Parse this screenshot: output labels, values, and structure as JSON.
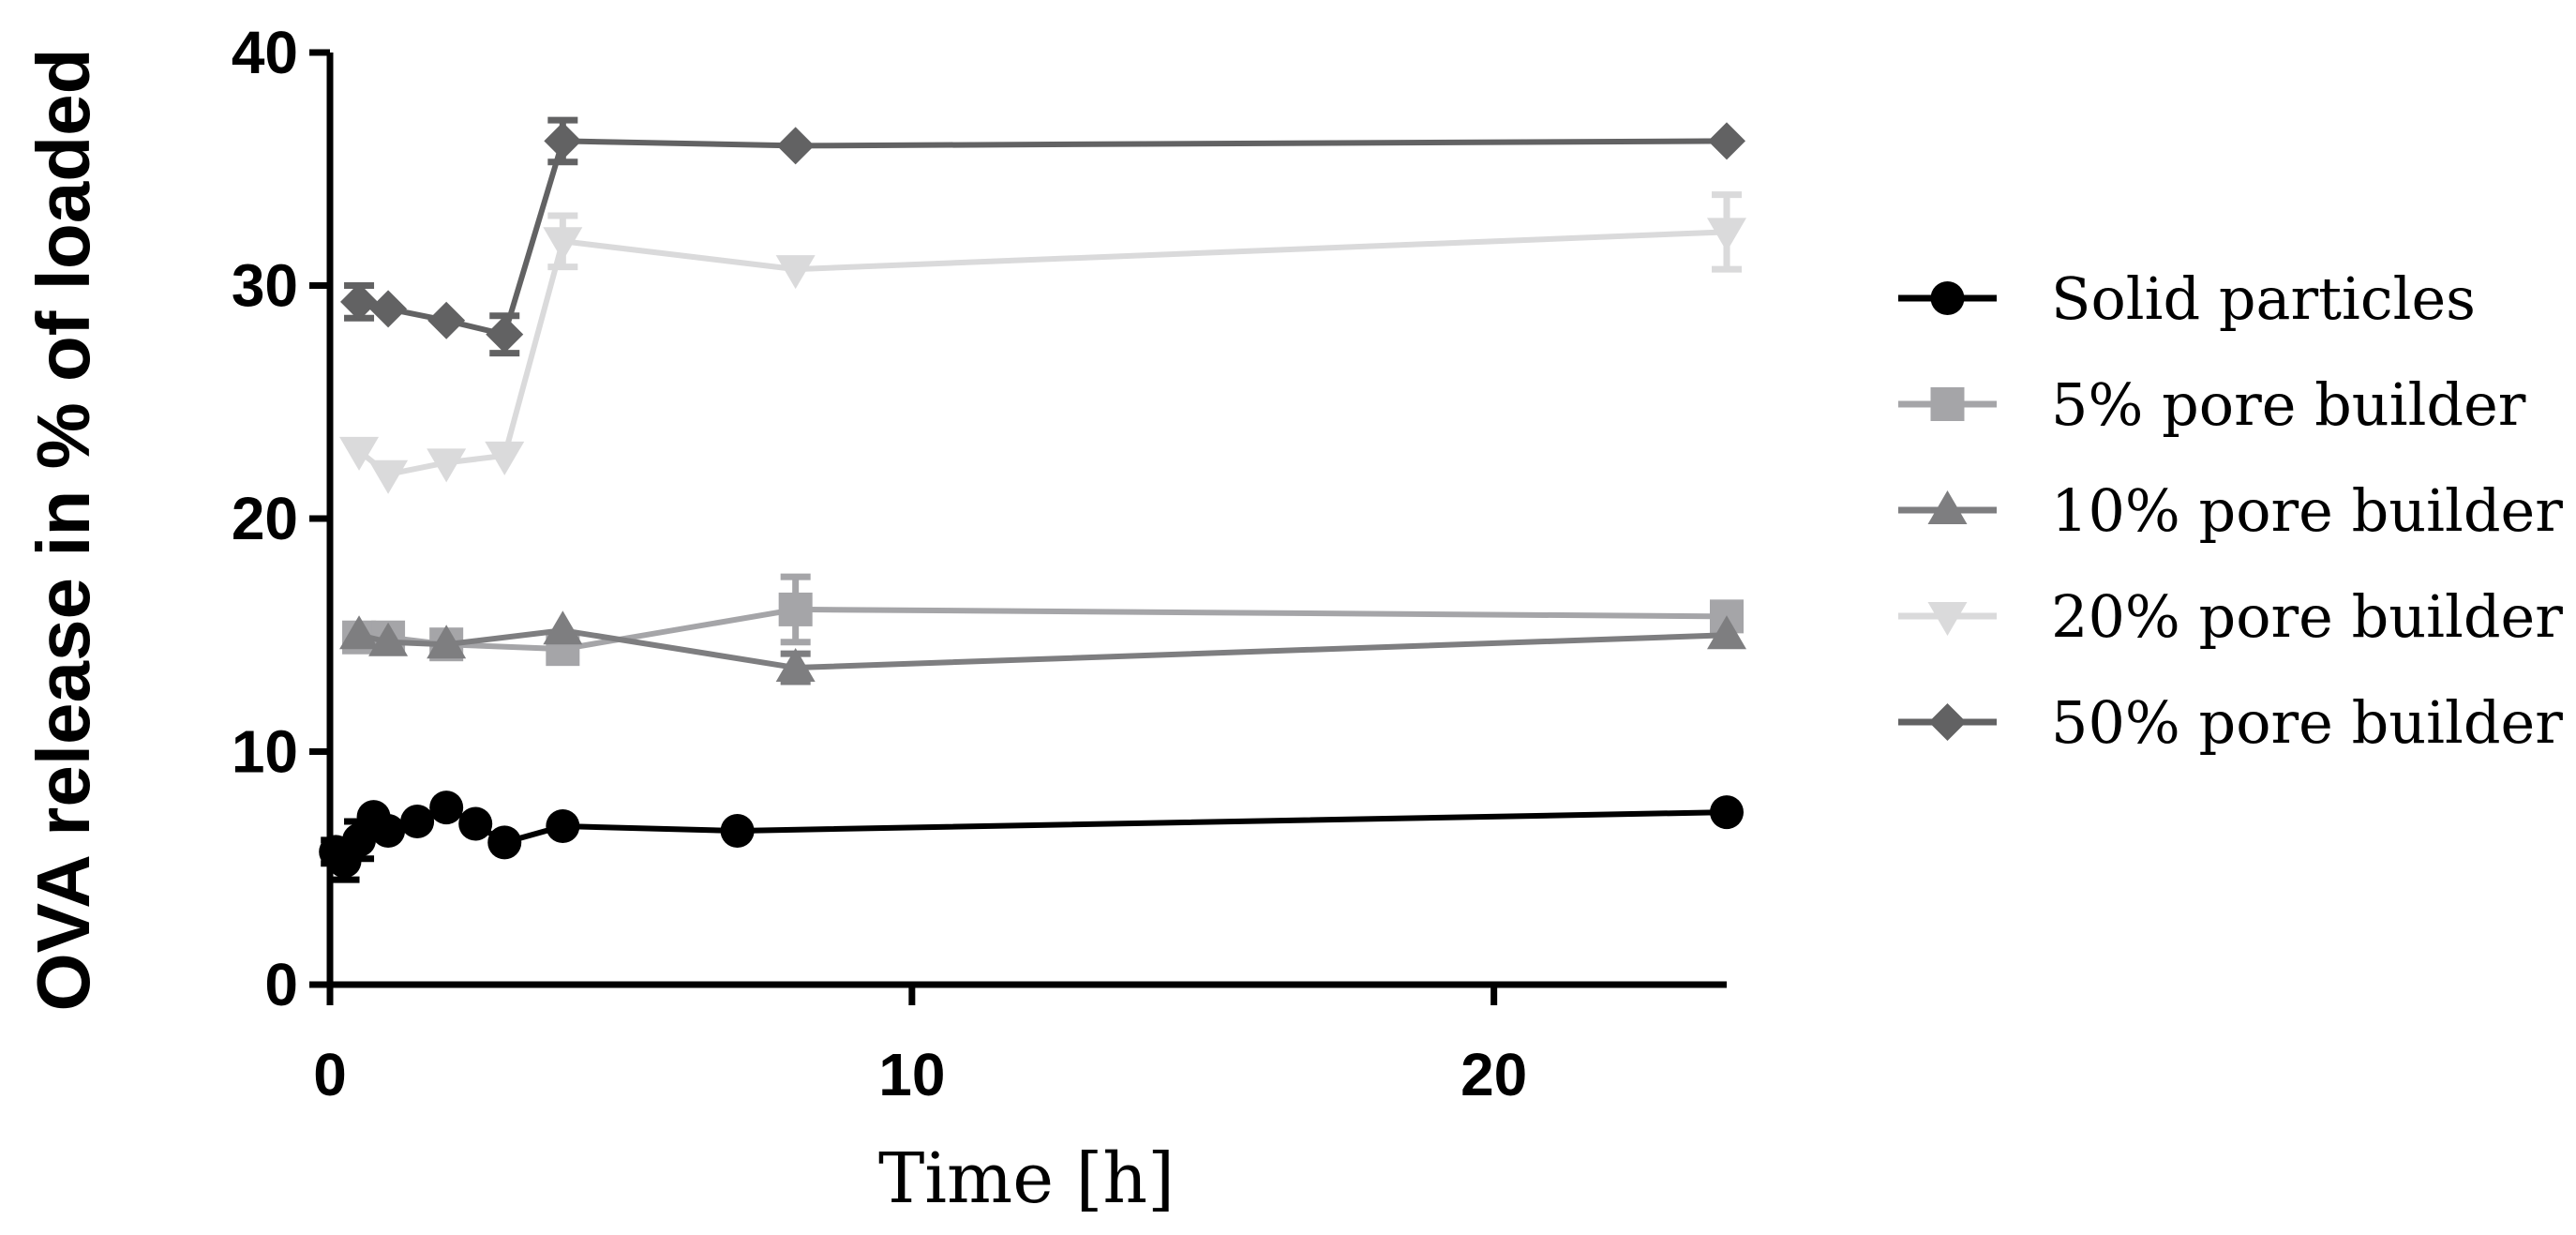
{
  "chart_data": {
    "type": "line",
    "title": "",
    "xlabel": "Time [h]",
    "ylabel": "OVA release in % of loaded",
    "xlim": [
      0,
      24
    ],
    "ylim": [
      0,
      40
    ],
    "xticks": [
      0,
      10,
      20
    ],
    "yticks": [
      0,
      10,
      20,
      30,
      40
    ],
    "grid": false,
    "legend_position": "right",
    "series": [
      {
        "name": "Solid particles",
        "marker": "circle",
        "color": "#000000",
        "x": [
          0.1,
          0.25,
          0.5,
          0.75,
          1,
          1.5,
          2,
          2.5,
          3,
          4,
          7,
          24
        ],
        "y": [
          5.7,
          5.3,
          6.2,
          7.2,
          6.6,
          7.0,
          7.6,
          6.9,
          6.1,
          6.8,
          6.6,
          7.4
        ],
        "err": [
          0.5,
          0.8,
          0.8,
          0,
          0,
          0,
          0,
          0,
          0,
          0,
          0,
          0
        ]
      },
      {
        "name": "5% pore builder",
        "marker": "square",
        "color": "#a5a5a8",
        "x": [
          0.5,
          1,
          2,
          4,
          8,
          24
        ],
        "y": [
          14.9,
          14.9,
          14.6,
          14.4,
          16.1,
          15.8
        ],
        "err": [
          0,
          0,
          0,
          0,
          1.4,
          0
        ]
      },
      {
        "name": "10% pore builder",
        "marker": "triangle-up",
        "color": "#7e7e80",
        "x": [
          0.5,
          1,
          2,
          4,
          8,
          24
        ],
        "y": [
          15.0,
          14.7,
          14.6,
          15.2,
          13.6,
          15.0
        ],
        "err": [
          0,
          0,
          0,
          0,
          0.6,
          0
        ]
      },
      {
        "name": "20% pore builder",
        "marker": "triangle-down",
        "color": "#dadadb",
        "x": [
          0.5,
          1,
          2,
          3,
          4,
          8,
          24
        ],
        "y": [
          22.9,
          21.9,
          22.4,
          22.7,
          31.9,
          30.7,
          32.3
        ],
        "err": [
          0,
          0,
          0,
          0,
          1.1,
          0,
          1.6
        ]
      },
      {
        "name": "50% pore builder",
        "marker": "diamond",
        "color": "#626263",
        "x": [
          0.5,
          1,
          2,
          3,
          4,
          8,
          24
        ],
        "y": [
          29.3,
          29.0,
          28.5,
          27.9,
          36.2,
          36.0,
          36.2
        ],
        "err": [
          0.7,
          0,
          0,
          0.8,
          0.9,
          0,
          0
        ]
      }
    ]
  }
}
